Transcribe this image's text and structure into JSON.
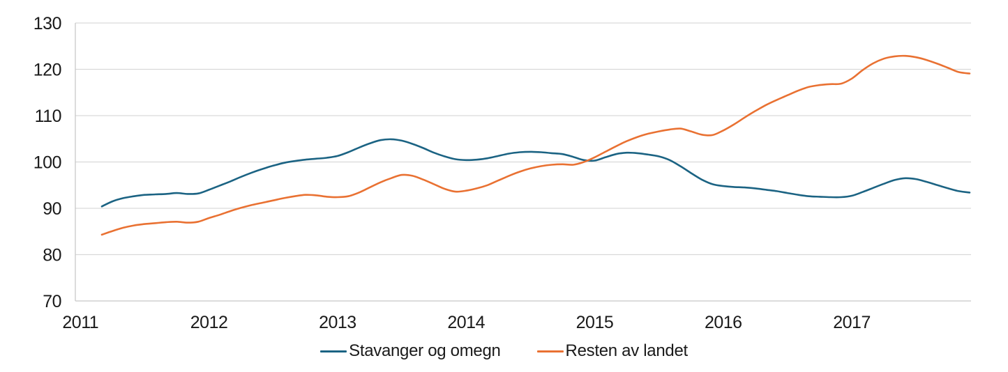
{
  "chart_data": {
    "type": "line",
    "title": "",
    "xlabel": "",
    "ylabel": "",
    "ylim": [
      70,
      130
    ],
    "y_ticks": [
      70,
      80,
      90,
      100,
      110,
      120,
      130
    ],
    "x_tick_labels": [
      "2011",
      "2012",
      "2013",
      "2014",
      "2015",
      "2016",
      "2017"
    ],
    "grid": "horizontal",
    "legend_position": "bottom",
    "start_year": 2011,
    "start_month": 3,
    "points_per_year": 12,
    "series": [
      {
        "name": "Stavanger og omegn",
        "color": "#1b6383",
        "values": [
          90.4,
          91.5,
          92.2,
          92.6,
          92.9,
          93.0,
          93.1,
          93.3,
          93.1,
          93.2,
          94.0,
          94.9,
          95.8,
          96.8,
          97.7,
          98.5,
          99.2,
          99.8,
          100.2,
          100.5,
          100.7,
          100.9,
          101.3,
          102.1,
          103.1,
          104.0,
          104.7,
          104.9,
          104.6,
          103.9,
          103.0,
          102.0,
          101.2,
          100.6,
          100.4,
          100.5,
          100.8,
          101.3,
          101.8,
          102.1,
          102.2,
          102.1,
          101.9,
          101.7,
          101.1,
          100.4,
          100.3,
          101.0,
          101.7,
          102.0,
          101.9,
          101.6,
          101.2,
          100.4,
          99.1,
          97.6,
          96.2,
          95.2,
          94.8,
          94.6,
          94.5,
          94.3,
          94.0,
          93.7,
          93.3,
          92.9,
          92.6,
          92.5,
          92.4,
          92.4,
          92.7,
          93.5,
          94.4,
          95.3,
          96.1,
          96.5,
          96.3,
          95.7,
          95.0,
          94.3,
          93.7,
          93.4
        ]
      },
      {
        "name": "Resten av landet",
        "color": "#e97132",
        "values": [
          84.3,
          85.1,
          85.8,
          86.3,
          86.6,
          86.8,
          87.0,
          87.1,
          86.9,
          87.1,
          87.9,
          88.6,
          89.4,
          90.1,
          90.7,
          91.2,
          91.7,
          92.2,
          92.6,
          92.9,
          92.8,
          92.5,
          92.4,
          92.6,
          93.4,
          94.5,
          95.6,
          96.5,
          97.2,
          97.0,
          96.2,
          95.2,
          94.2,
          93.6,
          93.8,
          94.3,
          95.0,
          96.0,
          97.0,
          97.9,
          98.6,
          99.1,
          99.4,
          99.5,
          99.4,
          100.0,
          101.0,
          102.2,
          103.4,
          104.5,
          105.4,
          106.1,
          106.6,
          107.0,
          107.2,
          106.6,
          105.9,
          105.8,
          106.8,
          108.1,
          109.6,
          111.0,
          112.3,
          113.4,
          114.4,
          115.4,
          116.2,
          116.6,
          116.8,
          116.9,
          118.0,
          119.8,
          121.3,
          122.3,
          122.8,
          122.9,
          122.6,
          122.0,
          121.2,
          120.3,
          119.4,
          119.1
        ]
      }
    ]
  },
  "colors": {
    "gridline": "#d9d9d9",
    "axis_line": "#c8c8c8",
    "text": "#1a1a1a",
    "background": "#ffffff"
  },
  "legend": {
    "items": [
      {
        "label": "Stavanger og omegn"
      },
      {
        "label": "Resten av landet"
      }
    ]
  }
}
